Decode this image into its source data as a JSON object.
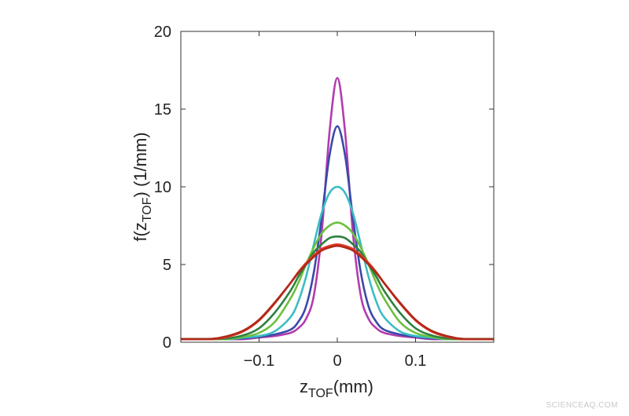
{
  "chart_data": {
    "type": "line",
    "xlabel": {
      "main": "z",
      "sub": "TOF",
      "unit": "(mm)"
    },
    "ylabel": {
      "main": "f(z",
      "sub": "TOF",
      "unit": ") (1/mm)"
    },
    "xlim": [
      -0.2,
      0.2
    ],
    "ylim": [
      0,
      20
    ],
    "xticks": [
      -0.1,
      0,
      0.1
    ],
    "xtick_labels": [
      "−0.1",
      "0",
      "0.1"
    ],
    "yticks": [
      0,
      5,
      10,
      15,
      20
    ],
    "ytick_labels": [
      "0",
      "5",
      "10",
      "15",
      "20"
    ],
    "grid": false,
    "x": [
      -0.2,
      -0.16,
      -0.14,
      -0.12,
      -0.1,
      -0.08,
      -0.06,
      -0.05,
      -0.04,
      -0.03,
      -0.02,
      -0.01,
      0,
      0.01,
      0.02,
      0.03,
      0.04,
      0.05,
      0.06,
      0.08,
      0.1,
      0.12,
      0.14,
      0.16,
      0.2
    ],
    "series": [
      {
        "color": "#b23cae",
        "values": [
          0.2,
          0.2,
          0.2,
          0.2,
          0.3,
          0.4,
          0.6,
          0.9,
          1.5,
          3,
          7,
          13.5,
          17,
          13.5,
          7,
          3,
          1.5,
          0.9,
          0.6,
          0.4,
          0.3,
          0.2,
          0.2,
          0.2,
          0.2
        ]
      },
      {
        "color": "#3a4aa8",
        "values": [
          0.2,
          0.2,
          0.2,
          0.25,
          0.35,
          0.5,
          0.8,
          1.3,
          2.3,
          4.5,
          8,
          12,
          13.9,
          12,
          8,
          4.5,
          2.3,
          1.3,
          0.8,
          0.5,
          0.35,
          0.25,
          0.2,
          0.2,
          0.2
        ]
      },
      {
        "color": "#3cbcc4",
        "values": [
          0.2,
          0.2,
          0.2,
          0.3,
          0.4,
          0.7,
          1.6,
          2.6,
          4.2,
          6.3,
          8.3,
          9.6,
          10,
          9.6,
          8.3,
          6.3,
          4.2,
          2.6,
          1.6,
          0.7,
          0.4,
          0.3,
          0.2,
          0.2,
          0.2
        ]
      },
      {
        "color": "#6cc040",
        "values": [
          0.2,
          0.2,
          0.2,
          0.35,
          0.6,
          1.3,
          2.8,
          3.8,
          5,
          6.1,
          7,
          7.5,
          7.7,
          7.5,
          7,
          6.1,
          5,
          3.8,
          2.8,
          1.3,
          0.6,
          0.35,
          0.2,
          0.2,
          0.2
        ]
      },
      {
        "color": "#2e8040",
        "values": [
          0.2,
          0.2,
          0.25,
          0.45,
          0.9,
          1.9,
          3.3,
          4.2,
          5,
          5.8,
          6.3,
          6.7,
          6.8,
          6.7,
          6.3,
          5.8,
          5,
          4.2,
          3.3,
          1.9,
          0.9,
          0.45,
          0.25,
          0.2,
          0.2
        ]
      },
      {
        "color": "#e04028",
        "values": [
          0.2,
          0.2,
          0.35,
          0.7,
          1.4,
          2.5,
          3.8,
          4.5,
          5.1,
          5.6,
          6,
          6.2,
          6.3,
          6.2,
          6,
          5.6,
          5.1,
          4.5,
          3.8,
          2.5,
          1.4,
          0.7,
          0.35,
          0.2,
          0.2
        ]
      },
      {
        "color": "#b02818",
        "values": [
          0.2,
          0.22,
          0.4,
          0.75,
          1.45,
          2.55,
          3.8,
          4.45,
          5,
          5.5,
          5.9,
          6.1,
          6.2,
          6.1,
          5.9,
          5.5,
          5,
          4.45,
          3.8,
          2.55,
          1.45,
          0.75,
          0.4,
          0.22,
          0.2
        ]
      }
    ]
  },
  "watermark": "SCIENCEAQ.COM"
}
